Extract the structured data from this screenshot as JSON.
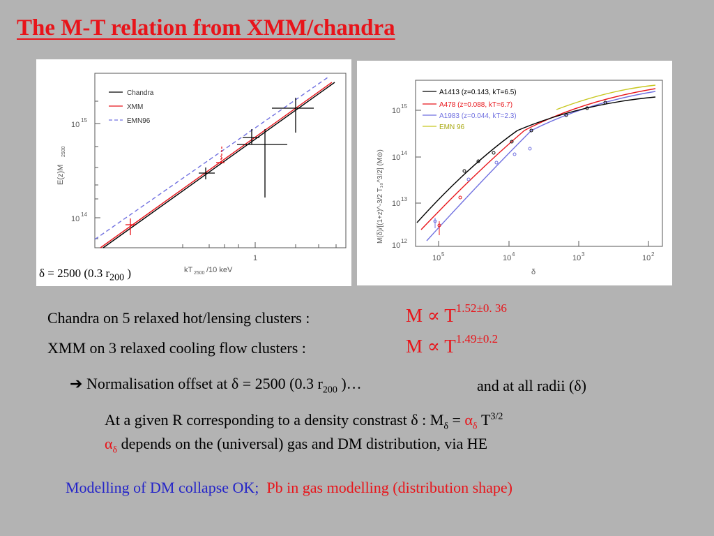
{
  "title": "The M-T relation from XMM/chandra",
  "left_plot": {
    "legend": [
      "Chandra",
      "XMM",
      "EMN96"
    ],
    "y_label": "E(z)M",
    "y_label_sub": "2500",
    "y_ticks": [
      "10",
      "10"
    ],
    "y_tick_exps": [
      "15",
      "14"
    ],
    "x_label_pre": "kT",
    "x_label_sub": "2500",
    "x_label_post": "/10  keV",
    "x_tick": "1",
    "caption_pre": "δ = 2500 (0.3 r",
    "caption_sub": "200",
    "caption_post": " )",
    "colors": {
      "chandra": "#000000",
      "xmm": "#e8141a",
      "emn96": "#7070e0"
    }
  },
  "right_plot": {
    "legend": [
      "A1413 (z=0.143, kT=6.5)",
      "A478 (z=0.088, kT=6.7)",
      "A1983 (z=0.044, kT=2.3)",
      "EMN 96"
    ],
    "y_ticks": [
      "10",
      "10",
      "10",
      "10"
    ],
    "y_tick_exps": [
      "15",
      "14",
      "13",
      "12"
    ],
    "x_ticks": [
      "10",
      "10",
      "10",
      "10"
    ],
    "x_tick_exps": [
      "5",
      "4",
      "3",
      "2"
    ],
    "x_label": "δ",
    "y_label": "M(δ)/[(1+z)^-3/2 T₁₀^3/2] (M⊙)",
    "colors": {
      "a1413": "#000000",
      "a478": "#e8141a",
      "a1983": "#7070e0",
      "emn96": "#c8c820"
    }
  },
  "results": {
    "chandra_text": "Chandra on 5 relaxed hot/lensing clusters :",
    "chandra_rel": "M ∝ T",
    "chandra_exp": "1.52±0. 36",
    "xmm_text": "XMM on 3 relaxed cooling flow clusters :",
    "xmm_rel": "M ∝ T",
    "xmm_exp": "1.49±0.2"
  },
  "offset": {
    "arrow": "➔",
    "text_pre": " Normalisation offset at δ = 2500 (0.3 r",
    "text_sub": "200",
    "text_post": " )…",
    "radii": "and at all radii (δ)"
  },
  "relation": {
    "line1_pre": "At a given R corresponding to a density constrast δ : M",
    "line1_sub": "δ",
    "line1_eq": " = ",
    "alpha": "α",
    "alpha_sub": "δ",
    "line1_T": " T",
    "line1_exp": "3/2",
    "line2_alpha": "α",
    "line2_sub": "δ",
    "line2_text": "  depends  on the (universal) gas and DM distribution, via HE"
  },
  "conclusion": {
    "blue": "Modelling of DM collapse OK;",
    "red": "Pb in gas modelling (distribution shape)"
  }
}
